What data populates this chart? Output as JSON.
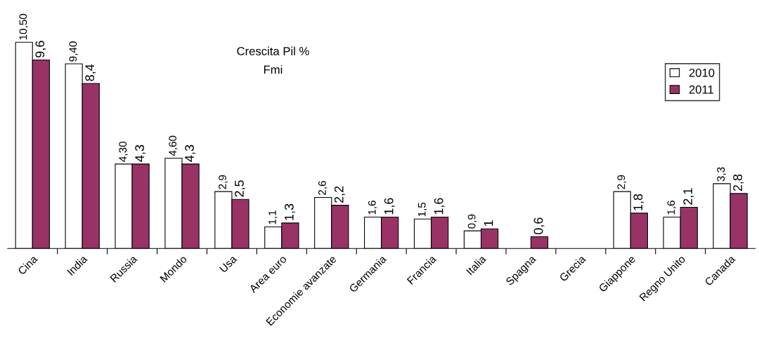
{
  "chart_data": {
    "type": "bar",
    "title": "Crescita Pil %",
    "subtitle": "Fmi",
    "categories": [
      "Cina",
      "India",
      "Russia",
      "Mondo",
      "Usa",
      "Area euro",
      "Economie avanzate",
      "Germania",
      "Francia",
      "Italia",
      "Spagna",
      "Grecia",
      "Giappone",
      "Regno Unito",
      "Canada"
    ],
    "series": [
      {
        "name": "2010",
        "color": "#ffffff",
        "values": [
          10.5,
          9.4,
          4.3,
          4.6,
          2.9,
          1.1,
          2.6,
          1.6,
          1.5,
          0.9,
          null,
          null,
          2.9,
          1.6,
          3.3
        ],
        "value_labels": [
          "10,50",
          "9,40",
          "4,30",
          "4,60",
          "2,9",
          "1,1",
          "2,6",
          "1,6",
          "1,5",
          "0,9",
          null,
          null,
          "2,9",
          "1,6",
          "3,3"
        ]
      },
      {
        "name": "2011",
        "color": "#993366",
        "values": [
          9.6,
          8.4,
          4.3,
          4.3,
          2.5,
          1.3,
          2.2,
          1.6,
          1.6,
          1,
          0.6,
          null,
          1.8,
          2.1,
          2.8
        ],
        "value_labels": [
          "9,6",
          "8,4",
          "4,3",
          "4,3",
          "2,5",
          "1,3",
          "2,2",
          "1,6",
          "1,6",
          "1",
          "0,6",
          null,
          "1,8",
          "2,1",
          "2,8"
        ]
      }
    ],
    "legend": "right",
    "grid": false
  }
}
